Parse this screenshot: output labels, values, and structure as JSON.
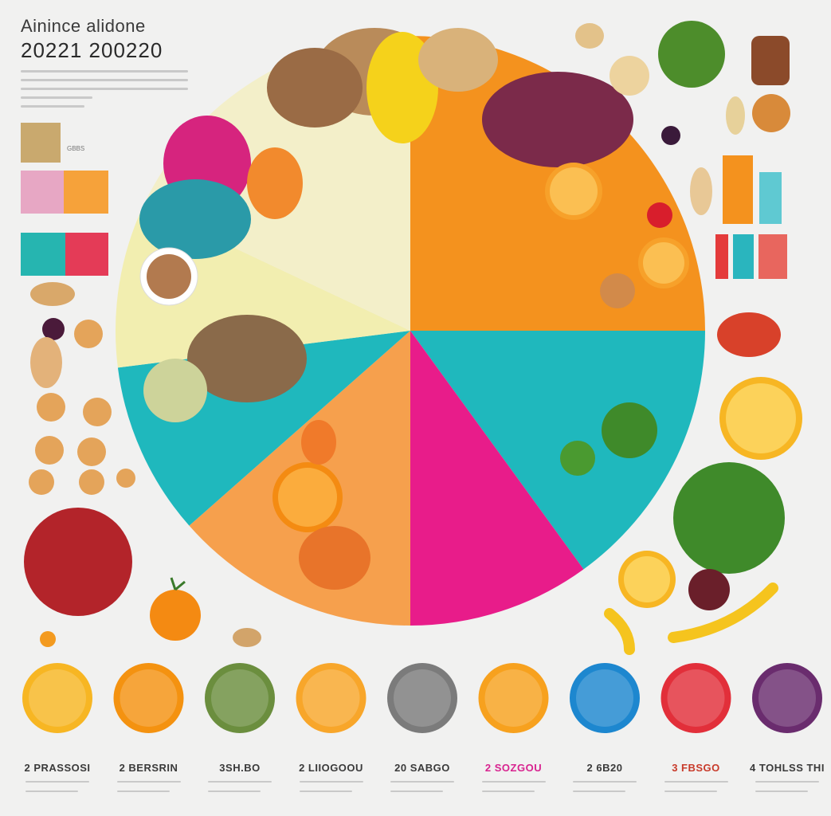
{
  "header": {
    "title": "Ainince alidone",
    "subtitle": "20221 200220"
  },
  "colors": {
    "background": "#f1f1f0",
    "orange": "#f4921e",
    "teal": "#1fb8bd",
    "magenta": "#e81c8a",
    "light_orange": "#f6a04d",
    "pale_yellow": "#f2eeb0",
    "pale_cream": "#f3efc9"
  },
  "chart_data": {
    "type": "pie",
    "title": "Ainince alidone",
    "subtitle": "20221 200220",
    "slices": [
      {
        "value": 25.0,
        "color": "#f4921e"
      },
      {
        "value": 15.0,
        "color": "#1fb8bd"
      },
      {
        "value": 10.0,
        "color": "#e81c8a"
      },
      {
        "value": 13.5,
        "color": "#f6a04d"
      },
      {
        "value": 9.5,
        "color": "#1fb8bd"
      },
      {
        "value": 9.0,
        "color": "#f2eeb0"
      },
      {
        "value": 18.0,
        "color": "#f3efc9"
      }
    ],
    "legend_placement": "none"
  },
  "left_legend": {
    "swatch_colors": [
      "#c9a96e",
      "#e7a7c4",
      "#f6a23a",
      "#26b5b0",
      "#e43b57"
    ],
    "label": "GBBS"
  },
  "right_legend": {
    "bar_colors": [
      "#f4921e",
      "#5fc9d2",
      "#e43b3b",
      "#2ab5be",
      "#e8665e"
    ]
  },
  "bottom_items": [
    {
      "label": "2 PRASSOSI",
      "color": "#f7b623",
      "style": "normal"
    },
    {
      "label": "2 BERSRIN",
      "color": "#f49210",
      "style": "normal"
    },
    {
      "label": "3SH.BO",
      "color": "#6b8e3e",
      "style": "normal"
    },
    {
      "label": "2 LIIOGOOU",
      "color": "#f8a62a",
      "style": "normal"
    },
    {
      "label": "20 SABGO",
      "color": "#7b7b7b",
      "style": "normal"
    },
    {
      "label": "2 SOZGOU",
      "color": "#f7a11e",
      "style": "pink"
    },
    {
      "label": "2 6B20",
      "color": "#1d87cf",
      "style": "normal"
    },
    {
      "label": "3 FBSGO",
      "color": "#e22f3a",
      "style": "red"
    },
    {
      "label": "4 TOHLSS THI",
      "color": "#6a2c6e",
      "style": "normal"
    }
  ]
}
